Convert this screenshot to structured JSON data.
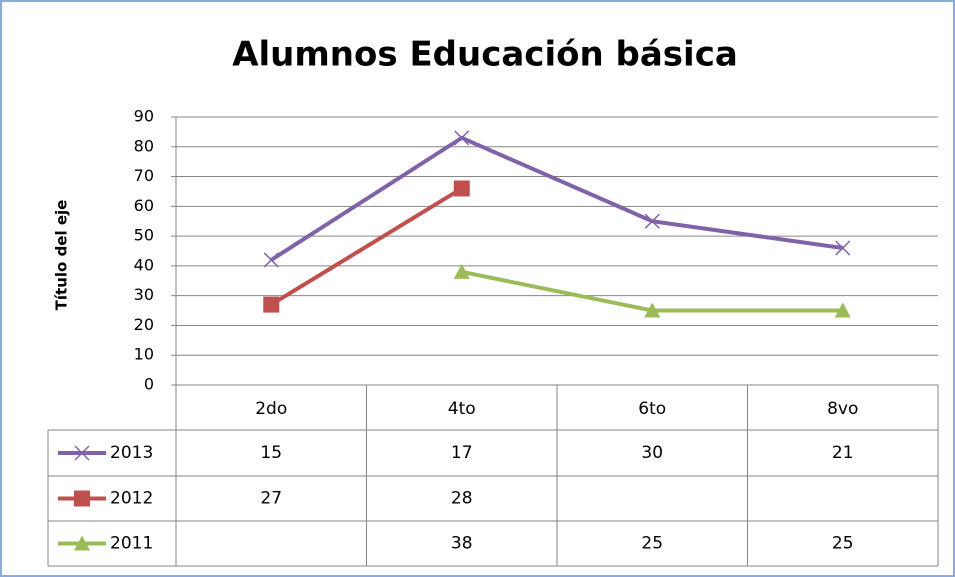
{
  "chart_data": {
    "type": "line",
    "stacked": true,
    "title": "Alumnos Educación básica",
    "y_label": "Título del eje",
    "categories": [
      "2do",
      "4to",
      "6to",
      "8vo"
    ],
    "series": [
      {
        "name": "2013",
        "color": "#7f62a8",
        "marker": "x",
        "values": [
          15,
          17,
          30,
          21
        ]
      },
      {
        "name": "2012",
        "color": "#c0504d",
        "marker": "square",
        "values": [
          27,
          28,
          null,
          null
        ]
      },
      {
        "name": "2011",
        "color": "#9bbb59",
        "marker": "triangle",
        "values": [
          null,
          38,
          25,
          25
        ]
      }
    ],
    "ylim": [
      0,
      90
    ],
    "yticks": [
      0,
      10,
      20,
      30,
      40,
      50,
      60,
      70,
      80,
      90
    ],
    "grid": true,
    "data_table": true
  }
}
